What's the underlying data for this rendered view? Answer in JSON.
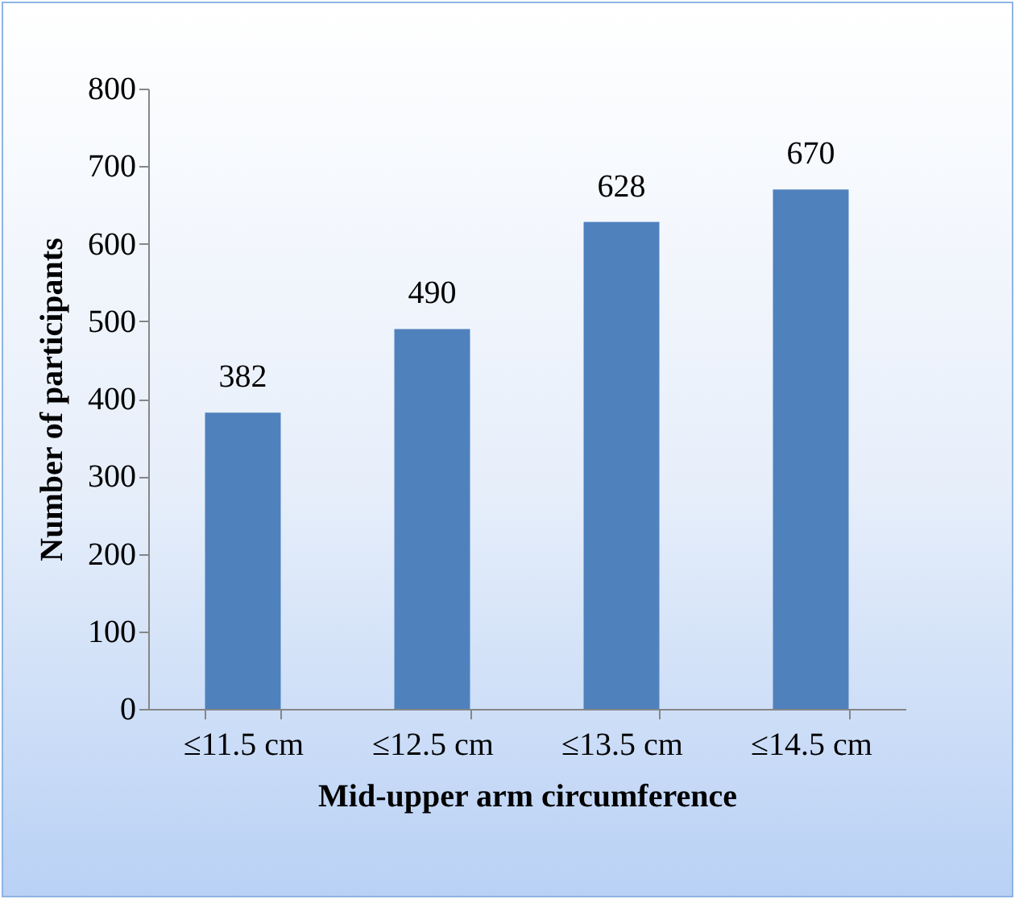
{
  "chart_data": {
    "type": "bar",
    "xlabel": "Mid-upper arm circumference",
    "ylabel": "Number of participants",
    "categories": [
      "≤11.5 cm",
      "≤12.5 cm",
      "≤13.5 cm",
      "≤14.5 cm"
    ],
    "values": [
      382,
      490,
      628,
      670
    ],
    "color": "#4f81bd",
    "ylim": [
      0,
      800
    ],
    "yticks": [
      0,
      100,
      200,
      300,
      400,
      500,
      600,
      700,
      800
    ],
    "data_labels": true
  }
}
